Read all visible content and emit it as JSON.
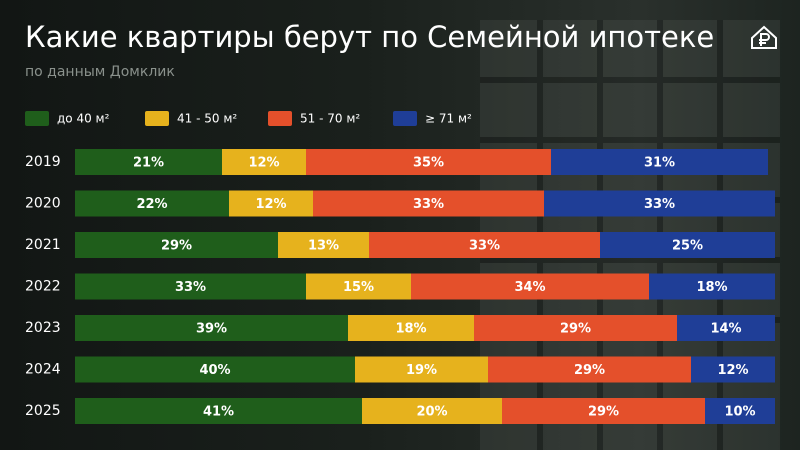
{
  "chart_data": {
    "type": "stacked-bar-horizontal",
    "title": "Какие квартиры берут по Семейной ипотеке",
    "subtitle": "по данным Домклик",
    "categories": [
      "2019",
      "2020",
      "2021",
      "2022",
      "2023",
      "2024",
      "2025"
    ],
    "xlim": [
      0,
      100
    ],
    "legend": "top",
    "series": [
      {
        "name": "до 40 м²",
        "color": "#1f5e1b",
        "values": [
          21,
          22,
          29,
          33,
          39,
          40,
          41
        ],
        "value_labels": [
          "21%",
          "22%",
          "29%",
          "33%",
          "39%",
          "40%",
          "41%"
        ]
      },
      {
        "name": "41 - 50 м²",
        "color": "#e6b21d",
        "values": [
          12,
          12,
          13,
          15,
          18,
          19,
          20
        ],
        "value_labels": [
          "12%",
          "12%",
          "13%",
          "15%",
          "18%",
          "19%",
          "20%"
        ]
      },
      {
        "name": "51 - 70 м²",
        "color": "#e4502b",
        "values": [
          35,
          33,
          33,
          34,
          29,
          29,
          29
        ],
        "value_labels": [
          "35%",
          "33%",
          "33%",
          "34%",
          "29%",
          "29%",
          "29%"
        ]
      },
      {
        "name": "≥ 71 м²",
        "color": "#1f3e97",
        "values": [
          31,
          33,
          25,
          18,
          14,
          12,
          10
        ],
        "value_labels": [
          "31%",
          "33%",
          "25%",
          "18%",
          "14%",
          "12%",
          "10%"
        ]
      }
    ]
  }
}
